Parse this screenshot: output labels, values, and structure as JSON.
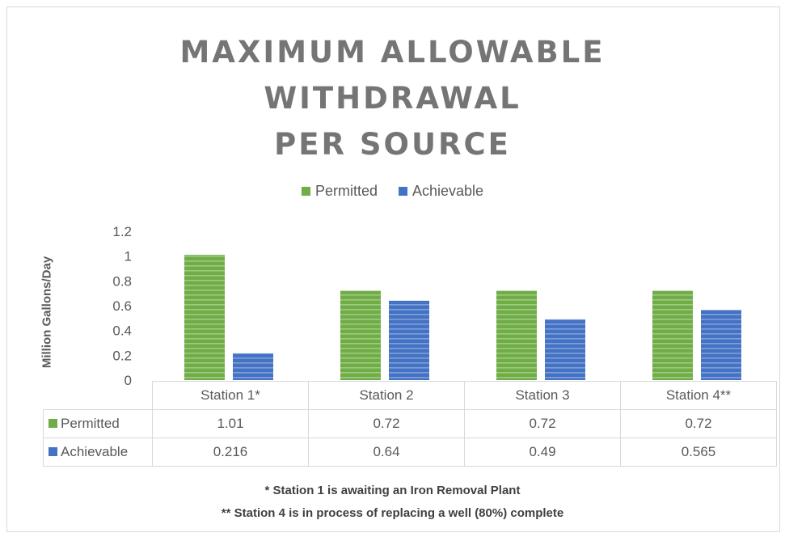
{
  "chart_data": {
    "type": "bar",
    "title_lines": [
      "MAXIMUM ALLOWABLE",
      "WITHDRAWAL",
      "PER SOURCE"
    ],
    "categories": [
      "Station 1*",
      "Station 2",
      "Station 3",
      "Station 4**"
    ],
    "series": [
      {
        "name": "Permitted",
        "color": "#70ad47",
        "values": [
          1.01,
          0.72,
          0.72,
          0.72
        ],
        "display_values": [
          "1.01",
          "0.72",
          "0.72",
          "0.72"
        ]
      },
      {
        "name": "Achievable",
        "color": "#4472c4",
        "values": [
          0.216,
          0.64,
          0.49,
          0.565
        ],
        "display_values": [
          "0.216",
          "0.64",
          "0.49",
          "0.565"
        ]
      }
    ],
    "ylabel": "Million Gallons/Day",
    "ylim": [
      0,
      1.2
    ],
    "yticks": [
      "1.2",
      "1",
      "0.8",
      "0.6",
      "0.4",
      "0.2",
      "0"
    ],
    "legend_position": "top",
    "data_table": true,
    "grid": false
  },
  "notes": {
    "note1": "* Station 1 is awaiting an Iron Removal Plant",
    "note2": "** Station 4 is in process of replacing a well (80%) complete"
  }
}
